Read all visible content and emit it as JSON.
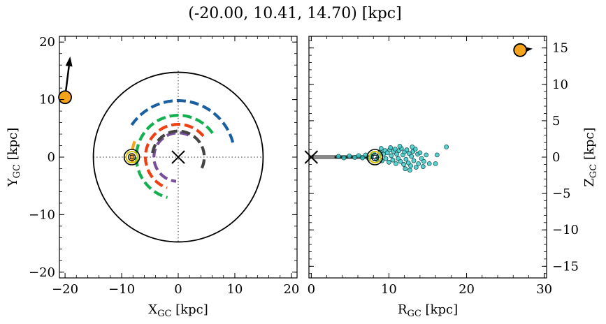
{
  "title": "(-20.00, 10.41, 14.70) [kpc]",
  "colors": {
    "star": "#f5a31a",
    "circle": "#000000",
    "arm_blue": "#1a5fa0",
    "arm_green": "#13b050",
    "arm_red": "#ef4014",
    "arm_orange": "#f5a31a",
    "arm_purple": "#7a4f9a",
    "arm_gray": "#444444",
    "scatter_fill": "#3cc9c9",
    "scatter_edge": "#1a5555",
    "sun": "#d4c000"
  },
  "chart_data": [
    {
      "type": "scatter",
      "name": "galactic-plane-view",
      "xlabel": "X_GC [kpc]",
      "ylabel": "Y_GC [kpc]",
      "xlim": [
        -21,
        21
      ],
      "ylim": [
        -21,
        21
      ],
      "xticks": [
        -20,
        -10,
        0,
        10,
        20
      ],
      "yticks": [
        -20,
        -10,
        0,
        10,
        20
      ],
      "xtick_labels": [
        "−20",
        "−10",
        "0",
        "10",
        "20"
      ],
      "ytick_labels": [
        "−20",
        "−10",
        "0",
        "10",
        "20"
      ],
      "object": {
        "x": -20.0,
        "y": 10.41
      },
      "velocity_arrow_tip": {
        "x": -19.1,
        "y": 17.5
      },
      "galactic_center": {
        "x": 0,
        "y": 0
      },
      "sun": {
        "x": -8.2,
        "y": 0
      },
      "boundary_circle_radius": 15,
      "spiral_arms": [
        {
          "name": "outer-arm",
          "color_key": "arm_blue",
          "radius": 10.0,
          "start_deg": 15,
          "end_deg": 146
        },
        {
          "name": "perseus-arm",
          "color_key": "arm_green",
          "radius": 7.4,
          "start_deg": 35,
          "end_deg": 255
        },
        {
          "name": "sagittarius-arm",
          "color_key": "arm_red",
          "radius": 5.8,
          "start_deg": 40,
          "end_deg": 250
        },
        {
          "name": "local-arm",
          "color_key": "arm_orange",
          "radius": 8.2,
          "start_deg": 160,
          "end_deg": 188
        },
        {
          "name": "scutum-arm",
          "color_key": "arm_purple",
          "radius": 4.3,
          "start_deg": 65,
          "end_deg": 265
        },
        {
          "name": "norma-arm",
          "color_key": "arm_gray",
          "radius": 4.6,
          "start_deg": -25,
          "end_deg": 180
        }
      ]
    },
    {
      "type": "scatter",
      "name": "meridional-view",
      "xlabel": "R_GC [kpc]",
      "ylabel": "Z_GC [kpc]",
      "xlim": [
        -0.3,
        30.3
      ],
      "ylim": [
        -16.6,
        16.6
      ],
      "xticks": [
        0,
        10,
        20,
        30
      ],
      "yticks": [
        -15,
        -10,
        -5,
        0,
        5,
        10,
        15
      ],
      "xtick_labels": [
        "0",
        "10",
        "20",
        "30"
      ],
      "ytick_labels": [
        "−15",
        "−10",
        "−5",
        "0",
        "5",
        "10",
        "15"
      ],
      "object": {
        "x": 26.9,
        "y": 14.7
      },
      "velocity_arrow_tip": {
        "x": 28.5,
        "y": 14.9
      },
      "galactic_center": {
        "x": 0,
        "y": 0
      },
      "sun": {
        "x": 8.2,
        "y": 0
      },
      "disk_band": {
        "x0": 0,
        "x1": 8.0,
        "y": 0
      },
      "scatter_points": [
        [
          3.5,
          0.1
        ],
        [
          4.2,
          -0.1
        ],
        [
          4.9,
          0.15
        ],
        [
          5.6,
          -0.05
        ],
        [
          6.1,
          0.2
        ],
        [
          6.6,
          -0.1
        ],
        [
          7.0,
          0.3
        ],
        [
          7.4,
          -0.2
        ],
        [
          7.7,
          0.1
        ],
        [
          8.0,
          0.5
        ],
        [
          8.4,
          -0.3
        ],
        [
          8.7,
          0.2
        ],
        [
          8.9,
          0.7
        ],
        [
          9.1,
          -0.5
        ],
        [
          9.3,
          0.4
        ],
        [
          9.5,
          0.9
        ],
        [
          9.6,
          -0.2
        ],
        [
          9.8,
          0.6
        ],
        [
          10.0,
          -0.7
        ],
        [
          10.1,
          1.0
        ],
        [
          10.3,
          0.2
        ],
        [
          10.5,
          -0.4
        ],
        [
          10.6,
          0.8
        ],
        [
          10.8,
          1.1
        ],
        [
          10.9,
          -0.9
        ],
        [
          11.0,
          0.4
        ],
        [
          11.2,
          -0.2
        ],
        [
          11.3,
          0.9
        ],
        [
          11.5,
          -0.6
        ],
        [
          11.6,
          1.2
        ],
        [
          11.8,
          0.3
        ],
        [
          11.9,
          -1.0
        ],
        [
          12.0,
          0.7
        ],
        [
          12.2,
          -0.3
        ],
        [
          12.3,
          1.0
        ],
        [
          12.5,
          -0.8
        ],
        [
          12.6,
          0.5
        ],
        [
          12.8,
          -1.2
        ],
        [
          12.9,
          0.1
        ],
        [
          13.1,
          0.8
        ],
        [
          13.2,
          -0.5
        ],
        [
          13.4,
          1.1
        ],
        [
          13.5,
          -1.4
        ],
        [
          13.7,
          0.4
        ],
        [
          13.8,
          -0.9
        ],
        [
          14.0,
          0.6
        ],
        [
          14.2,
          -0.2
        ],
        [
          14.5,
          -0.6
        ],
        [
          14.8,
          0.3
        ],
        [
          15.2,
          -0.9
        ],
        [
          16.0,
          -0.9
        ],
        [
          16.2,
          0.3
        ],
        [
          17.4,
          1.4
        ],
        [
          10.2,
          1.3
        ],
        [
          11.4,
          1.5
        ],
        [
          12.1,
          -1.6
        ],
        [
          9.0,
          1.2
        ],
        [
          13.0,
          1.4
        ],
        [
          12.7,
          -1.8
        ],
        [
          14.4,
          -1.3
        ]
      ]
    }
  ]
}
